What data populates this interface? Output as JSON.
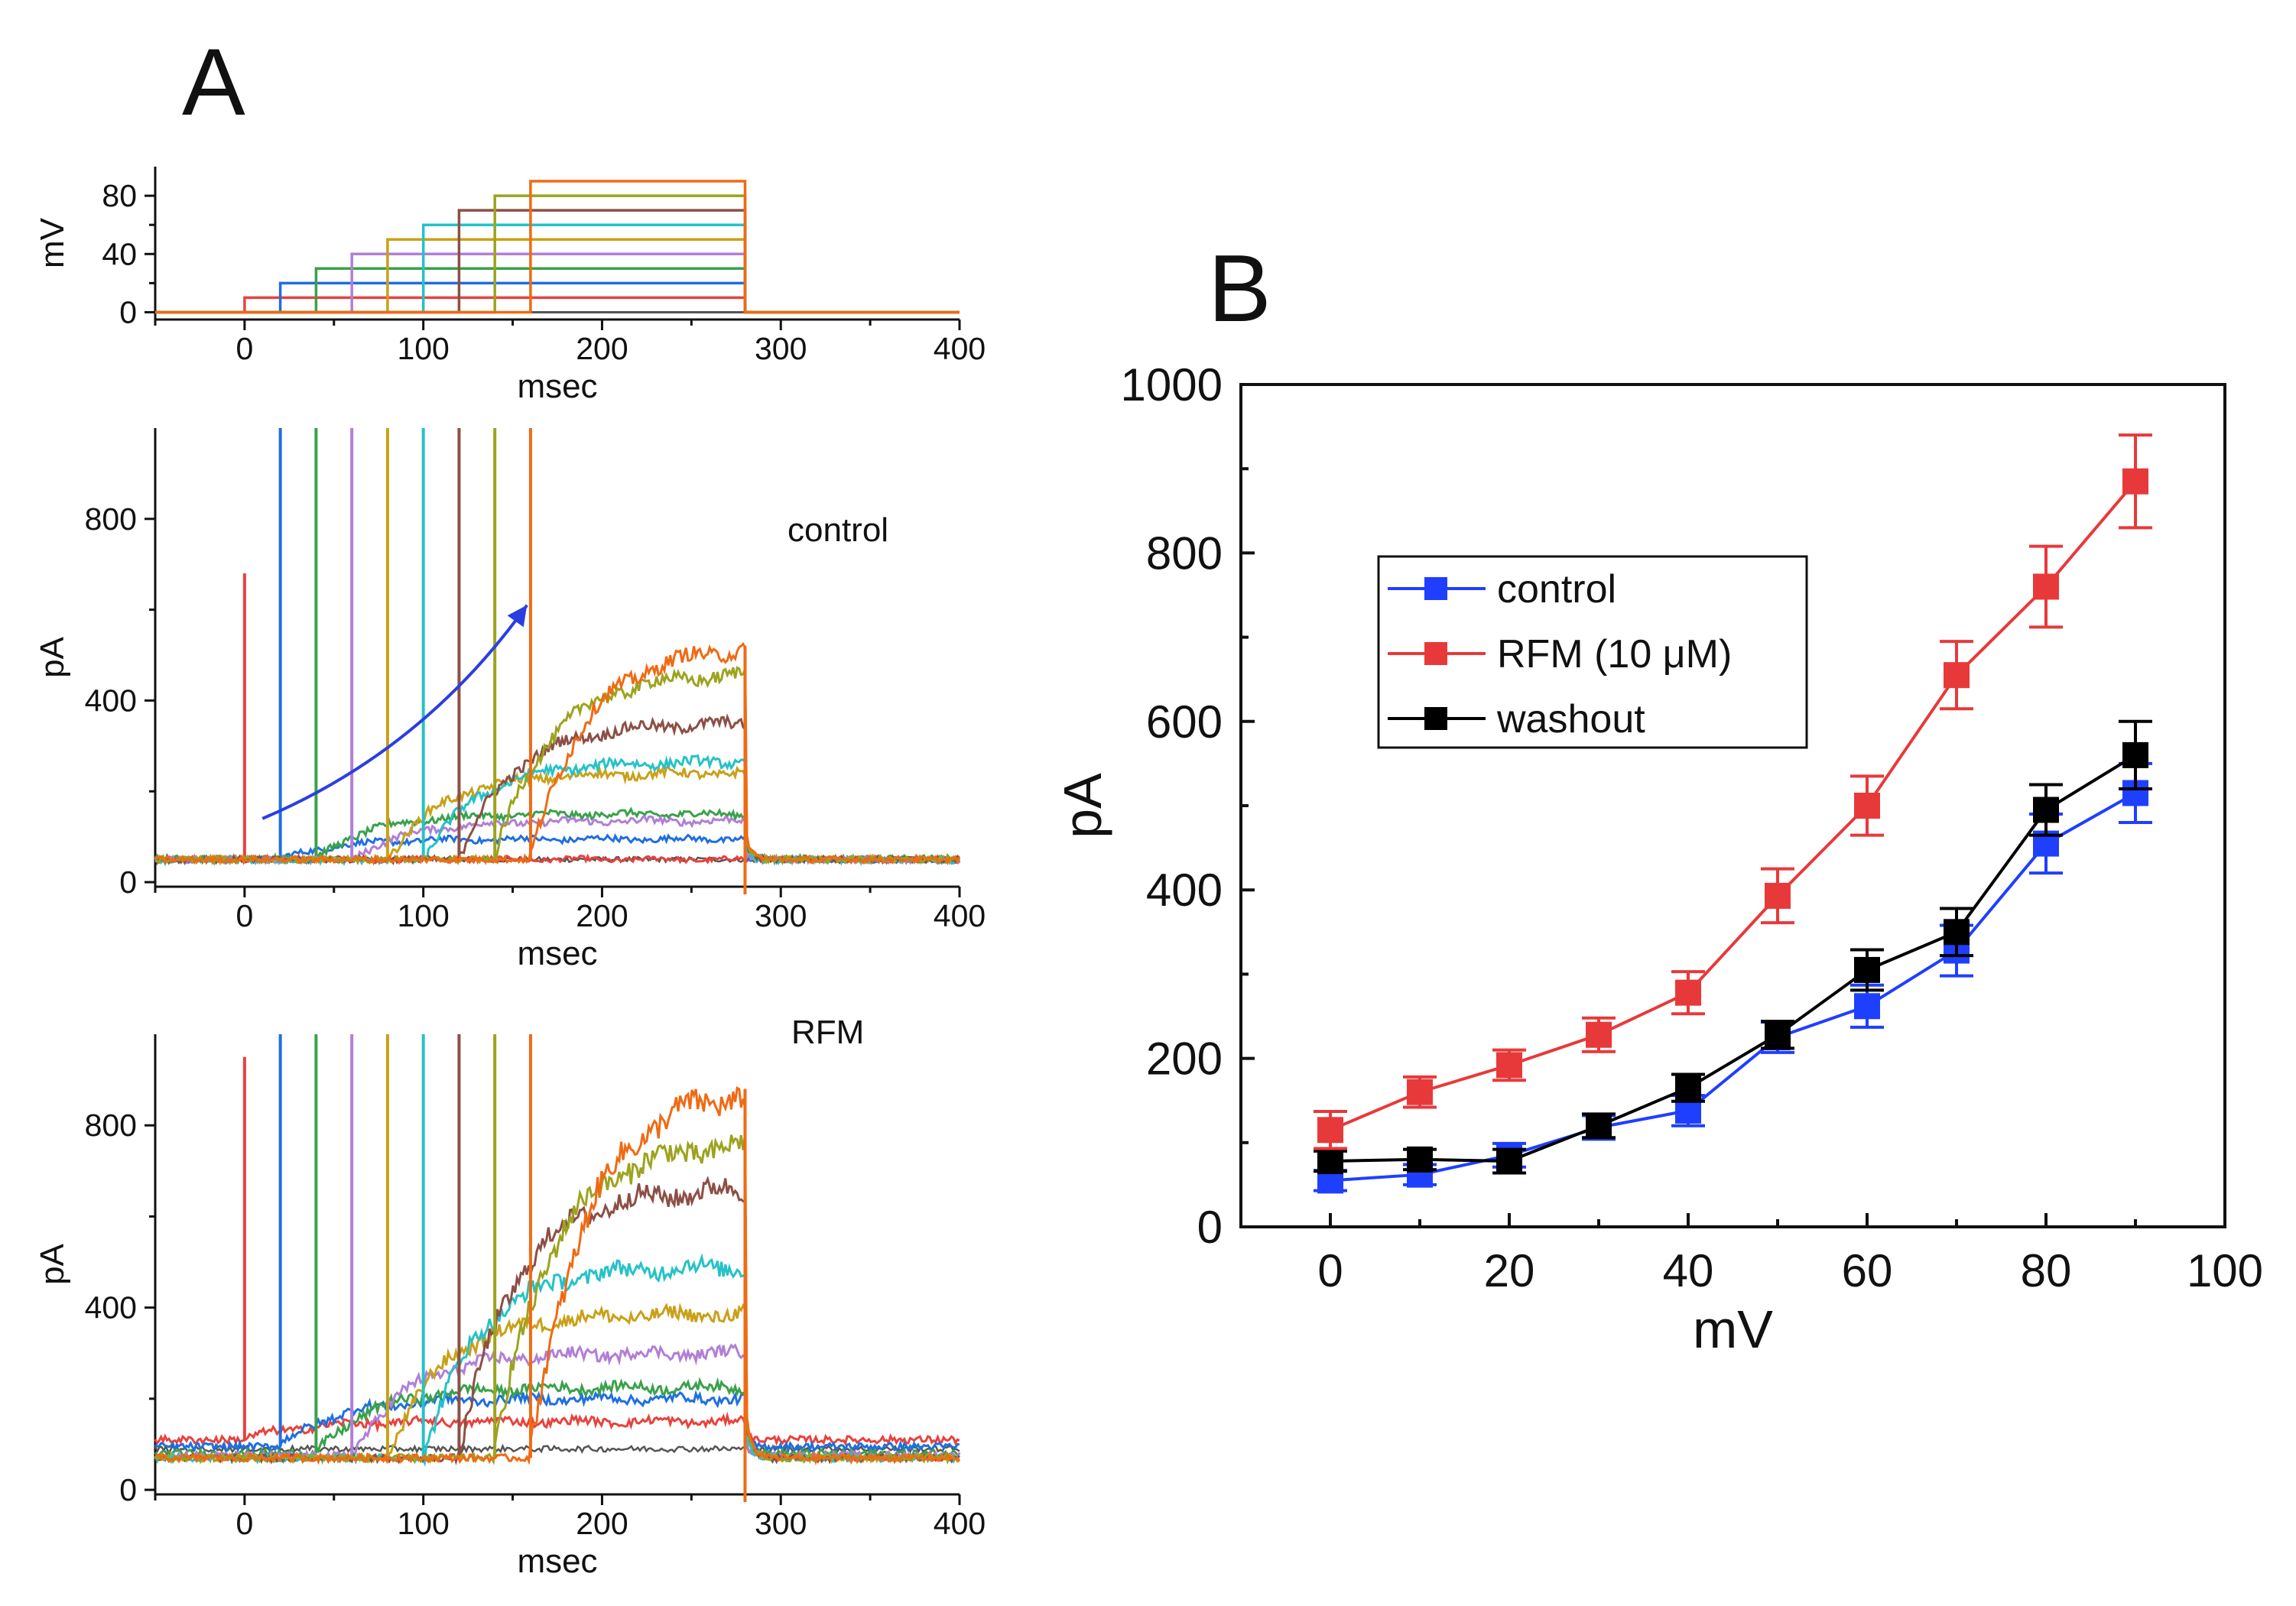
{
  "colors": {
    "sweeps": [
      "#e8423d",
      "#1f6fe0",
      "#3aa14b",
      "#b07fd6",
      "#c9a019",
      "#25c2c8",
      "#8c4f45",
      "#9ca31f",
      "#f06a14"
    ],
    "holding": "#555555",
    "axis": "#111111",
    "arrow": "#2a3fe0",
    "control": "#1f3fff",
    "rfm": "#e8393a",
    "washout": "#000000"
  },
  "panel_a": {
    "label": "A",
    "control_label": "control",
    "rfm_label": "RFM"
  },
  "panel_b": {
    "label": "B"
  },
  "chart_data": [
    {
      "id": "voltage_protocol",
      "type": "line",
      "title": "",
      "xlabel": "msec",
      "ylabel": "mV",
      "xlim": [
        -50,
        400
      ],
      "ylim": [
        -5,
        100
      ],
      "xticks": [
        0,
        100,
        200,
        300,
        400
      ],
      "yticks": [
        0,
        40,
        80
      ],
      "step_start_ms": [
        0,
        20,
        40,
        60,
        80,
        100,
        120,
        140,
        160
      ],
      "step_end_ms": 280,
      "step_levels_mV": [
        10,
        20,
        30,
        40,
        50,
        60,
        70,
        80,
        90
      ],
      "holding_mV": 0
    },
    {
      "id": "control_currents",
      "type": "line",
      "title": "control",
      "xlabel": "msec",
      "ylabel": "pA",
      "xlim": [
        -50,
        400
      ],
      "ylim": [
        -10,
        1000
      ],
      "xticks": [
        0,
        100,
        200,
        300,
        400
      ],
      "yticks": [
        0,
        400,
        800
      ],
      "step_start_ms": [
        0,
        20,
        40,
        60,
        80,
        100,
        120,
        140,
        160
      ],
      "step_end_ms": 280,
      "baseline_pA": [
        50,
        50,
        52,
        50,
        50,
        48,
        50,
        50,
        50
      ],
      "steady_pA": [
        50,
        95,
        150,
        135,
        240,
        265,
        350,
        460,
        520
      ],
      "transient_peak_pA": [
        680,
        1000,
        1000,
        1000,
        1000,
        1000,
        1000,
        1000,
        1000
      ],
      "holding_trace_pA": 50
    },
    {
      "id": "rfm_currents",
      "type": "line",
      "title": "RFM",
      "xlabel": "msec",
      "ylabel": "pA",
      "xlim": [
        -50,
        400
      ],
      "ylim": [
        -10,
        1000
      ],
      "xticks": [
        0,
        100,
        200,
        300,
        400
      ],
      "yticks": [
        0,
        400,
        800
      ],
      "step_start_ms": [
        0,
        20,
        40,
        60,
        80,
        100,
        120,
        140,
        160
      ],
      "step_end_ms": 280,
      "baseline_pA": [
        110,
        95,
        80,
        75,
        70,
        70,
        70,
        70,
        70
      ],
      "steady_pA": [
        150,
        200,
        225,
        300,
        385,
        490,
        660,
        760,
        880
      ],
      "transient_peak_pA": [
        950,
        1000,
        1000,
        1000,
        1000,
        1000,
        1000,
        1000,
        1000
      ],
      "holding_trace_pA": 90
    },
    {
      "id": "iv_curve",
      "type": "line",
      "title": "",
      "xlabel": "mV",
      "ylabel": "pA",
      "xlim": [
        -10,
        100
      ],
      "ylim": [
        0,
        1000
      ],
      "xticks": [
        0,
        20,
        40,
        60,
        80,
        100
      ],
      "yticks": [
        0,
        200,
        400,
        600,
        800,
        1000
      ],
      "x": [
        0,
        10,
        20,
        30,
        40,
        50,
        60,
        70,
        80,
        90
      ],
      "legend_position": "upper-left",
      "series": [
        {
          "name": "control",
          "color": "#1f3fff",
          "values": [
            55,
            62,
            85,
            118,
            138,
            225,
            262,
            328,
            455,
            515
          ],
          "errors": [
            12,
            12,
            14,
            14,
            18,
            18,
            25,
            30,
            35,
            35
          ]
        },
        {
          "name": "RFM (10 μM)",
          "color": "#e8393a",
          "values": [
            115,
            160,
            192,
            228,
            278,
            393,
            500,
            655,
            760,
            885
          ],
          "errors": [
            22,
            18,
            18,
            20,
            25,
            32,
            35,
            40,
            48,
            55
          ]
        },
        {
          "name": "washout",
          "color": "#000000",
          "values": [
            78,
            80,
            78,
            120,
            165,
            228,
            305,
            350,
            495,
            560
          ],
          "errors": [
            12,
            12,
            14,
            14,
            16,
            16,
            24,
            28,
            30,
            40
          ]
        }
      ]
    }
  ]
}
